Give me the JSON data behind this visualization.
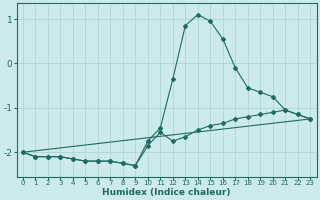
{
  "xlabel": "Humidex (Indice chaleur)",
  "background_color": "#cce9ec",
  "grid_color": "#afd4d8",
  "line_color": "#1e6b62",
  "xlim": [
    -0.5,
    23.5
  ],
  "ylim": [
    -2.55,
    1.35
  ],
  "yticks": [
    -2,
    -1,
    0,
    1
  ],
  "xticks": [
    0,
    1,
    2,
    3,
    4,
    5,
    6,
    7,
    8,
    9,
    10,
    11,
    12,
    13,
    14,
    15,
    16,
    17,
    18,
    19,
    20,
    21,
    22,
    23
  ],
  "line1_x": [
    0,
    1,
    2,
    3,
    4,
    5,
    6,
    7,
    8,
    9,
    10,
    11,
    12,
    13,
    14,
    15,
    16,
    17,
    18,
    19,
    20,
    21,
    22,
    23
  ],
  "line1_y": [
    -2.0,
    -2.1,
    -2.1,
    -2.1,
    -2.15,
    -2.2,
    -2.2,
    -2.2,
    -2.25,
    -2.3,
    -1.75,
    -1.45,
    -0.35,
    0.85,
    1.1,
    0.95,
    0.55,
    -0.1,
    -0.55,
    -0.65,
    -0.75,
    -1.05,
    -1.15,
    -1.25
  ],
  "line2_x": [
    0,
    1,
    2,
    3,
    4,
    5,
    6,
    7,
    8,
    9,
    10,
    11,
    12,
    13,
    14,
    15,
    16,
    17,
    18,
    19,
    20,
    21,
    22,
    23
  ],
  "line2_y": [
    -2.0,
    -2.1,
    -2.1,
    -2.1,
    -2.15,
    -2.2,
    -2.2,
    -2.2,
    -2.25,
    -2.3,
    -1.85,
    -1.55,
    -1.75,
    -1.65,
    -1.5,
    -1.4,
    -1.35,
    -1.25,
    -1.2,
    -1.15,
    -1.1,
    -1.05,
    -1.15,
    -1.25
  ],
  "line3_x": [
    0,
    23
  ],
  "line3_y": [
    -2.0,
    -1.25
  ]
}
